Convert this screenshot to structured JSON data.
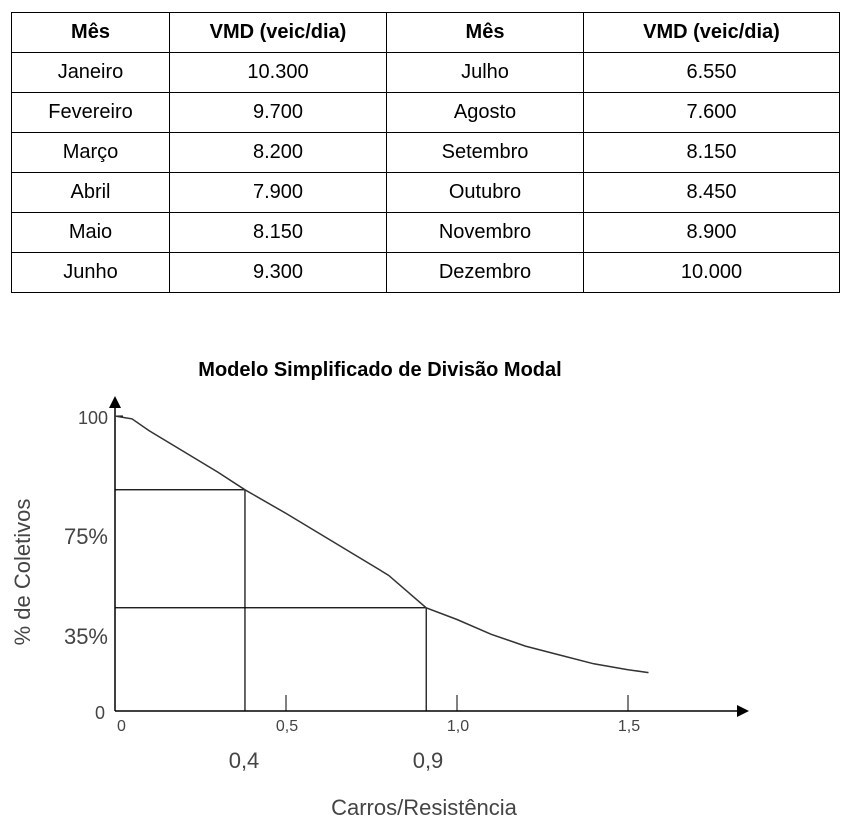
{
  "table": {
    "headers": [
      "Mês",
      "VMD (veic/dia)",
      "Mês",
      "VMD (veic/dia)"
    ],
    "rows": [
      [
        "Janeiro",
        "10.300",
        "Julho",
        "6.550"
      ],
      [
        "Fevereiro",
        "9.700",
        "Agosto",
        "7.600"
      ],
      [
        "Março",
        "8.200",
        "Setembro",
        "8.150"
      ],
      [
        "Abril",
        "7.900",
        "Outubro",
        "8.450"
      ],
      [
        "Maio",
        "8.150",
        "Novembro",
        "8.900"
      ],
      [
        "Junho",
        "9.300",
        "Dezembro",
        "10.000"
      ]
    ]
  },
  "chart_data": {
    "type": "line",
    "title": "Modelo Simplificado de Divisão Modal",
    "xlabel": "Carros/Resistência",
    "ylabel": "% de Coletivos",
    "xlim": [
      0,
      1.7
    ],
    "ylim": [
      0,
      100
    ],
    "x_ticks": [
      "0",
      "0,5",
      "1,0",
      "1,5"
    ],
    "y_ticks": [
      "0",
      "35%",
      "75%",
      "100"
    ],
    "curve": {
      "x": [
        0,
        0.05,
        0.1,
        0.2,
        0.3,
        0.38,
        0.5,
        0.6,
        0.7,
        0.8,
        0.91,
        1.0,
        1.1,
        1.2,
        1.3,
        1.4,
        1.5,
        1.56
      ],
      "y": [
        100,
        99,
        95,
        88,
        81,
        75,
        67,
        60,
        53,
        46,
        35,
        31,
        26,
        22,
        19,
        16,
        14,
        13
      ]
    },
    "markers": [
      {
        "x": 0.38,
        "y": 75,
        "x_label": "0,4",
        "y_label": "75%"
      },
      {
        "x": 0.91,
        "y": 35,
        "x_label": "0,9",
        "y_label": "35%"
      }
    ],
    "grid": false,
    "legend": "none"
  }
}
